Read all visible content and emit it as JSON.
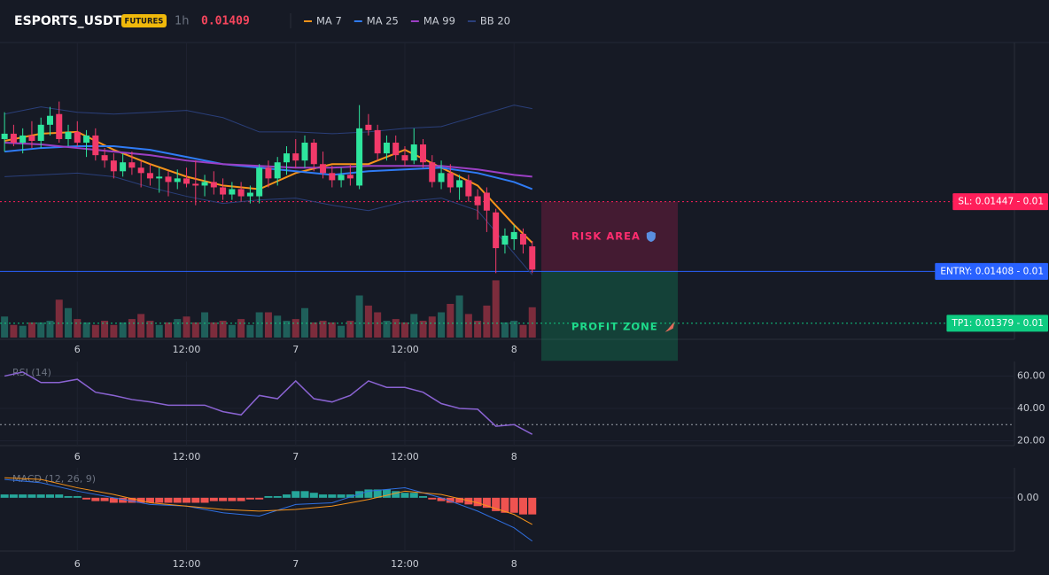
{
  "chart_data": [
    {
      "type": "candlestick",
      "title": "ESPORTS_USDT",
      "badge": "FUTURES",
      "interval": "1h",
      "last_price": 0.01409,
      "last_price_color": "#f6465d",
      "xlim": [
        -0.5,
        111
      ],
      "xticks": [
        {
          "value": 8,
          "label": "6"
        },
        {
          "value": 20,
          "label": "12:00"
        },
        {
          "value": 32,
          "label": "7"
        },
        {
          "value": 44,
          "label": "12:00"
        },
        {
          "value": 56,
          "label": "8"
        }
      ],
      "ylim": [
        0.0137,
        0.01536
      ],
      "grid": true,
      "up_color": "#2ee59d",
      "down_color": "#f23a6a",
      "open": [
        0.01482,
        0.01485,
        0.0148,
        0.01484,
        0.01481,
        0.0149,
        0.01496,
        0.01482,
        0.01486,
        0.0148,
        0.01484,
        0.01473,
        0.0147,
        0.01464,
        0.01469,
        0.01466,
        0.01463,
        0.0146,
        0.01461,
        0.01458,
        0.0146,
        0.01457,
        0.01456,
        0.01458,
        0.01455,
        0.01451,
        0.01454,
        0.0145,
        0.0145,
        0.01466,
        0.0146,
        0.01469,
        0.01474,
        0.0147,
        0.0148,
        0.01468,
        0.01463,
        0.01459,
        0.01462,
        0.01456,
        0.0149,
        0.01487,
        0.01474,
        0.0148,
        0.01473,
        0.0147,
        0.01479,
        0.01469,
        0.01458,
        0.01463,
        0.01455,
        0.01459,
        0.0145,
        0.01452,
        0.01441,
        0.01423,
        0.01426,
        0.01429,
        0.01422
      ],
      "high": [
        0.01497,
        0.0149,
        0.01488,
        0.01492,
        0.01494,
        0.015,
        0.01503,
        0.0149,
        0.01492,
        0.01487,
        0.01488,
        0.01477,
        0.01474,
        0.01474,
        0.01475,
        0.0147,
        0.01468,
        0.01466,
        0.01464,
        0.01465,
        0.01466,
        0.0147,
        0.01462,
        0.01464,
        0.0146,
        0.01458,
        0.01458,
        0.01456,
        0.01468,
        0.0147,
        0.01472,
        0.01478,
        0.01482,
        0.01484,
        0.01482,
        0.01475,
        0.01467,
        0.01466,
        0.01468,
        0.01501,
        0.01496,
        0.0149,
        0.01484,
        0.01484,
        0.01478,
        0.01488,
        0.01482,
        0.01473,
        0.0147,
        0.01468,
        0.01462,
        0.01462,
        0.01454,
        0.01455,
        0.01443,
        0.01432,
        0.01434,
        0.01432,
        0.01425
      ],
      "low": [
        0.01475,
        0.01478,
        0.01474,
        0.01477,
        0.01477,
        0.01484,
        0.0148,
        0.01478,
        0.01478,
        0.01472,
        0.0147,
        0.01466,
        0.0146,
        0.01461,
        0.01462,
        0.01455,
        0.01456,
        0.01452,
        0.0145,
        0.01454,
        0.01455,
        0.01445,
        0.0145,
        0.01451,
        0.01448,
        0.01448,
        0.01447,
        0.01446,
        0.01446,
        0.01455,
        0.01456,
        0.01462,
        0.01466,
        0.01466,
        0.01464,
        0.0146,
        0.01455,
        0.01455,
        0.01456,
        0.01454,
        0.01484,
        0.0147,
        0.0147,
        0.0147,
        0.01467,
        0.01468,
        0.01466,
        0.01455,
        0.01454,
        0.01452,
        0.01448,
        0.01447,
        0.01437,
        0.0143,
        0.01407,
        0.01418,
        0.0142,
        0.01418,
        0.01407
      ],
      "close": [
        0.01485,
        0.0148,
        0.01484,
        0.01481,
        0.0149,
        0.01495,
        0.01482,
        0.01486,
        0.0148,
        0.01484,
        0.01473,
        0.0147,
        0.01464,
        0.01469,
        0.01466,
        0.01463,
        0.0146,
        0.01461,
        0.01458,
        0.0146,
        0.01457,
        0.01456,
        0.01458,
        0.01455,
        0.01451,
        0.01454,
        0.0145,
        0.01452,
        0.01466,
        0.0146,
        0.01469,
        0.01474,
        0.0147,
        0.0148,
        0.01468,
        0.01463,
        0.01459,
        0.01462,
        0.0146,
        0.01488,
        0.01487,
        0.01474,
        0.0148,
        0.01473,
        0.0147,
        0.01479,
        0.01469,
        0.01458,
        0.01463,
        0.01455,
        0.01459,
        0.0145,
        0.01445,
        0.01442,
        0.01421,
        0.01428,
        0.0143,
        0.01423,
        0.01409
      ],
      "volume": [
        25,
        15,
        14,
        18,
        18,
        20,
        45,
        35,
        22,
        18,
        15,
        20,
        15,
        18,
        22,
        28,
        20,
        15,
        18,
        22,
        25,
        18,
        30,
        18,
        20,
        15,
        22,
        15,
        30,
        30,
        26,
        20,
        22,
        35,
        18,
        20,
        18,
        14,
        20,
        50,
        38,
        30,
        20,
        22,
        18,
        28,
        20,
        25,
        30,
        40,
        50,
        28,
        20,
        38,
        68,
        18,
        20,
        15,
        36
      ],
      "volume_lim": [
        0,
        100
      ],
      "volume_up_color": "#1f5f5a",
      "volume_down_color": "#7c2c3c",
      "series": [
        {
          "name": "MA 7",
          "color": "#f7931a",
          "x": [
            0,
            4,
            8,
            12,
            16,
            20,
            24,
            28,
            32,
            36,
            40,
            44,
            48,
            52,
            56,
            58
          ],
          "values": [
            0.01481,
            0.01485,
            0.01486,
            0.01476,
            0.01468,
            0.01461,
            0.01456,
            0.01454,
            0.01463,
            0.01468,
            0.01468,
            0.01476,
            0.01466,
            0.01456,
            0.01434,
            0.01424
          ]
        },
        {
          "name": "MA 25",
          "color": "#2f7bf5",
          "x": [
            0,
            4,
            8,
            12,
            16,
            20,
            24,
            28,
            32,
            36,
            40,
            44,
            48,
            52,
            56,
            58
          ],
          "values": [
            0.01475,
            0.01477,
            0.01478,
            0.01478,
            0.01476,
            0.01472,
            0.01468,
            0.01466,
            0.01464,
            0.01462,
            0.01464,
            0.01465,
            0.01466,
            0.01463,
            0.01458,
            0.01454
          ]
        },
        {
          "name": "MA 99",
          "color": "#9c3fc4",
          "x": [
            0,
            4,
            8,
            12,
            16,
            20,
            24,
            28,
            32,
            36,
            40,
            44,
            48,
            52,
            56,
            58
          ],
          "values": [
            0.0148,
            0.01479,
            0.01477,
            0.01475,
            0.01473,
            0.0147,
            0.01468,
            0.01467,
            0.01466,
            0.01466,
            0.01467,
            0.01467,
            0.01467,
            0.01465,
            0.01462,
            0.01461
          ]
        },
        {
          "name": "BB 20",
          "color": "#2a3f7a",
          "x": [
            0,
            4,
            8,
            12,
            16,
            20,
            24,
            28,
            32,
            36,
            40,
            44,
            48,
            52,
            56,
            58
          ],
          "values": [
            0.01496,
            0.015,
            0.01497,
            0.01496,
            0.01497,
            0.01498,
            0.01494,
            0.01486,
            0.01486,
            0.01485,
            0.01486,
            0.01488,
            0.01489,
            0.01495,
            0.01501,
            0.01499
          ],
          "lower": [
            0.01461,
            0.01462,
            0.01463,
            0.01461,
            0.01455,
            0.0145,
            0.01446,
            0.01448,
            0.01449,
            0.01445,
            0.01442,
            0.01447,
            0.01449,
            0.01442,
            0.01418,
            0.01406
          ]
        }
      ],
      "price_lines": [
        {
          "label": "SL: 0.01447 - 0.01",
          "value": 0.01447,
          "color": "#ff1f5a",
          "style": "dotted"
        },
        {
          "label": "ENTRY: 0.01408 - 0.01",
          "value": 0.01408,
          "color": "#2962ff",
          "style": "solid"
        },
        {
          "label": "TP1: 0.01379 - 0.01",
          "value": 0.01379,
          "color": "#0ecb81",
          "style": "dotted"
        }
      ],
      "zones": [
        {
          "label": "RISK AREA",
          "from": 0.01447,
          "to": 0.01408,
          "x": [
            59,
            74
          ],
          "color": "#ff2d6f",
          "fill": "#e91e63"
        },
        {
          "label": "PROFIT ZONE",
          "from": 0.01408,
          "to": 0.01358,
          "x": [
            59,
            74
          ],
          "color": "#1fdc8c",
          "fill": "#0ecb81"
        }
      ]
    },
    {
      "type": "line",
      "title": "RSI (14)",
      "xlim": [
        -0.5,
        111
      ],
      "xticks": [
        {
          "value": 8,
          "label": "6"
        },
        {
          "value": 20,
          "label": "12:00"
        },
        {
          "value": 32,
          "label": "7"
        },
        {
          "value": 44,
          "label": "12:00"
        },
        {
          "value": 56,
          "label": "8"
        }
      ],
      "ylim": [
        17,
        69
      ],
      "yticks": [
        {
          "value": 60,
          "label": "60.00"
        },
        {
          "value": 40,
          "label": "40.00"
        },
        {
          "value": 20,
          "label": "20.00"
        }
      ],
      "reference": 30,
      "series": [
        {
          "color": "#8a63d2",
          "x": [
            0,
            2,
            4,
            6,
            8,
            10,
            12,
            14,
            16,
            18,
            20,
            22,
            24,
            26,
            28,
            30,
            32,
            34,
            36,
            38,
            40,
            42,
            44,
            46,
            48,
            50,
            52,
            54,
            56,
            58
          ],
          "values": [
            60,
            62.5,
            56,
            56,
            58,
            50,
            48,
            45.5,
            44,
            42,
            42,
            42,
            38,
            36,
            48,
            46,
            57,
            46,
            44,
            48,
            57,
            53,
            53,
            50,
            43,
            40,
            39.5,
            29,
            30,
            24
          ]
        }
      ]
    },
    {
      "type": "macd",
      "title": "MACD (12, 26, 9)",
      "xlim": [
        -0.5,
        111
      ],
      "xticks": [
        {
          "value": 8,
          "label": "6"
        },
        {
          "value": 20,
          "label": "12:00"
        },
        {
          "value": 32,
          "label": "7"
        },
        {
          "value": 44,
          "label": "12:00"
        },
        {
          "value": 56,
          "label": "8"
        }
      ],
      "ylim": [
        -0.00032,
        0.00018
      ],
      "yticks": [
        {
          "value": 0,
          "label": "0.00"
        }
      ],
      "histogram": [
        2e-05,
        2e-05,
        2e-05,
        2e-05,
        2e-05,
        2e-05,
        2e-05,
        1e-05,
        1e-05,
        -1e-05,
        -2e-05,
        -2e-05,
        -3e-05,
        -3e-05,
        -3e-05,
        -3e-05,
        -3e-05,
        -3e-05,
        -3e-05,
        -3e-05,
        -3e-05,
        -3e-05,
        -3e-05,
        -2e-05,
        -2e-05,
        -2e-05,
        -2e-05,
        -1e-05,
        -1e-05,
        1e-05,
        1e-05,
        2e-05,
        4e-05,
        4e-05,
        3e-05,
        2e-05,
        2e-05,
        2e-05,
        2e-05,
        4e-05,
        5e-05,
        5e-05,
        5e-05,
        4e-05,
        3e-05,
        3e-05,
        1e-05,
        -1e-05,
        -2e-05,
        -3e-05,
        -3e-05,
        -4e-05,
        -5e-05,
        -6e-05,
        -8e-05,
        -9e-05,
        -9e-05,
        -0.0001,
        -0.0001
      ],
      "hist_up_color": "#26a69a",
      "hist_down_color": "#ef5350",
      "series": [
        {
          "color": "#2f6fe0",
          "x": [
            0,
            4,
            8,
            12,
            16,
            20,
            24,
            28,
            32,
            36,
            40,
            44,
            48,
            52,
            56,
            58
          ],
          "values": [
            0.00011,
            9e-05,
            4e-05,
            0.0,
            -4e-05,
            -5e-05,
            -9e-05,
            -0.00011,
            -4e-05,
            -3e-05,
            4e-05,
            6e-05,
            0.0,
            -8e-05,
            -0.00018,
            -0.00026
          ]
        },
        {
          "color": "#f7931a",
          "x": [
            0,
            4,
            8,
            12,
            16,
            20,
            24,
            28,
            32,
            36,
            40,
            44,
            48,
            52,
            56,
            58
          ],
          "values": [
            0.00012,
            0.00011,
            6e-05,
            2e-05,
            -3e-05,
            -5e-05,
            -7e-05,
            -8e-05,
            -7e-05,
            -5e-05,
            -1e-05,
            4e-05,
            2e-05,
            -3e-05,
            -0.0001,
            -0.00016
          ]
        }
      ]
    }
  ]
}
